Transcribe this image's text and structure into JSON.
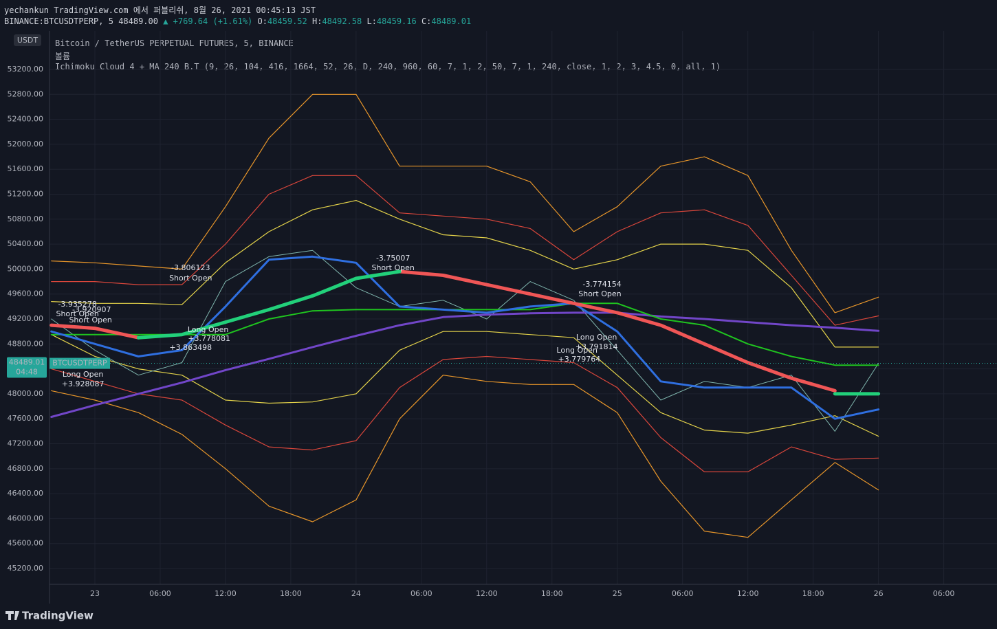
{
  "header": {
    "published": "yechankun TradingView.com 에서 퍼블리쉬, 8월 26, 2021 00:45:13 JST",
    "symbol": "BINANCE:BTCUSDTPERP, 5",
    "price": "48489.00",
    "change": "▲ +769.64 (+1.61%)",
    "ohlc": [
      {
        "label": "O:",
        "value": "48459.52"
      },
      {
        "label": "H:",
        "value": "48492.58"
      },
      {
        "label": "L:",
        "value": "48459.16"
      },
      {
        "label": "C:",
        "value": "48489.01"
      }
    ],
    "legend": [
      "Bitcoin / TetherUS PERPETUAL FUTURES, 5, BINANCE",
      "볼륨",
      "Ichimoku Cloud 4 + MA 240 B.T (9, 26, 104, 416, 1664, 52, 26, D, 240, 960, 60, 7, 1, 2, 50, 7, 1, 240, close, 1, 2, 3, 4.5, 0, all, 1)"
    ],
    "currency": "USDT",
    "logo": "TradingView"
  },
  "chart_data": {
    "type": "line",
    "x": [
      20,
      24,
      28,
      32,
      36,
      40,
      44,
      48,
      52,
      56,
      60,
      64,
      68,
      72,
      76,
      80,
      84,
      88,
      92,
      96
    ],
    "xlim": [
      19.83,
      106.26
    ],
    "xticks": [
      {
        "value": 24,
        "label": "23"
      },
      {
        "value": 30,
        "label": "06:00"
      },
      {
        "value": 36,
        "label": "12:00"
      },
      {
        "value": 42,
        "label": "18:00"
      },
      {
        "value": 48,
        "label": "24"
      },
      {
        "value": 54,
        "label": "06:00"
      },
      {
        "value": 60,
        "label": "12:00"
      },
      {
        "value": 66,
        "label": "18:00"
      },
      {
        "value": 72,
        "label": "25"
      },
      {
        "value": 78,
        "label": "06:00"
      },
      {
        "value": 84,
        "label": "12:00"
      },
      {
        "value": 90,
        "label": "18:00"
      },
      {
        "value": 96,
        "label": "26"
      },
      {
        "value": 102,
        "label": "06:00"
      }
    ],
    "ylim": [
      44947,
      53817
    ],
    "yticks": [
      {
        "value": 45200,
        "label": "45200.00"
      },
      {
        "value": 45600,
        "label": "45600.00"
      },
      {
        "value": 46000,
        "label": "46000.00"
      },
      {
        "value": 46400,
        "label": "46400.00"
      },
      {
        "value": 46800,
        "label": "46800.00"
      },
      {
        "value": 47200,
        "label": "47200.00"
      },
      {
        "value": 47600,
        "label": "47600.00"
      },
      {
        "value": 48000,
        "label": "48000.00"
      },
      {
        "value": 48400,
        "label": "48400.00"
      },
      {
        "value": 48800,
        "label": "48800.00"
      },
      {
        "value": 49200,
        "label": "49200.00"
      },
      {
        "value": 49600,
        "label": "49600.00"
      },
      {
        "value": 50000,
        "label": "50000.00"
      },
      {
        "value": 50400,
        "label": "50400.00"
      },
      {
        "value": 50800,
        "label": "50800.00"
      },
      {
        "value": 51200,
        "label": "51200.00"
      },
      {
        "value": 51600,
        "label": "51600.00"
      },
      {
        "value": 52000,
        "label": "52000.00"
      },
      {
        "value": 52400,
        "label": "52400.00"
      },
      {
        "value": 52800,
        "label": "52800.00"
      },
      {
        "value": 53200,
        "label": "53200.00"
      }
    ],
    "grid": true,
    "series": [
      {
        "color": "#e8962a",
        "values": [
          50130,
          50100,
          50050,
          50000,
          51000,
          52100,
          52800,
          52800,
          51650,
          51650,
          51650,
          51400,
          50600,
          51000,
          51650,
          51800,
          51500,
          50300,
          49300,
          49550
        ]
      },
      {
        "color": "#d9463b",
        "values": [
          49800,
          49800,
          49750,
          49750,
          50400,
          51200,
          51500,
          51500,
          50900,
          50850,
          50800,
          50650,
          50150,
          50600,
          50900,
          50950,
          50700,
          49900,
          49100,
          49250
        ]
      },
      {
        "color": "#e3d24a",
        "values": [
          49480,
          49450,
          49450,
          49430,
          50100,
          50600,
          50950,
          51100,
          50800,
          50550,
          50500,
          50300,
          50000,
          50150,
          50400,
          50400,
          50300,
          49700,
          48750,
          48750
        ]
      },
      {
        "color": "#e3d24a",
        "values": [
          48950,
          48600,
          48400,
          48300,
          47900,
          47850,
          47870,
          48000,
          48700,
          49000,
          49000,
          48950,
          48900,
          48300,
          47700,
          47420,
          47370,
          47500,
          47650,
          47320
        ]
      },
      {
        "color": "#d9463b",
        "values": [
          48400,
          48200,
          48000,
          47900,
          47500,
          47150,
          47100,
          47250,
          48100,
          48550,
          48600,
          48550,
          48500,
          48100,
          47300,
          46750,
          46750,
          47150,
          46950,
          46970
        ]
      },
      {
        "color": "#e8962a",
        "values": [
          48050,
          47900,
          47700,
          47350,
          46800,
          46200,
          45950,
          46300,
          47600,
          48300,
          48200,
          48150,
          48150,
          47700,
          46600,
          45800,
          45700,
          46300,
          46900,
          46460
        ]
      },
      {
        "color": "#7fb5ad",
        "values": [
          49200,
          48700,
          48300,
          48500,
          49800,
          50200,
          50300,
          49700,
          49400,
          49500,
          49200,
          49800,
          49500,
          48700,
          47900,
          48200,
          48100,
          48300,
          47400,
          48489
        ]
      },
      {
        "color": "#7146c8",
        "values": [
          47630,
          47820,
          48000,
          48180,
          48380,
          48560,
          48750,
          48930,
          49100,
          49230,
          49270,
          49290,
          49300,
          49300,
          49240,
          49200,
          49150,
          49100,
          49060,
          49010
        ]
      },
      {
        "color": "#1fc41f",
        "values": [
          48950,
          48950,
          48950,
          48950,
          48950,
          49200,
          49330,
          49350,
          49350,
          49350,
          49350,
          49350,
          49450,
          49450,
          49200,
          49100,
          48800,
          48600,
          48460,
          48460
        ]
      },
      {
        "color": "#2f6fe0",
        "values": [
          49000,
          48800,
          48600,
          48700,
          49400,
          50150,
          50200,
          50100,
          49400,
          49350,
          49300,
          49400,
          49450,
          49000,
          48200,
          48100,
          48100,
          48100,
          47600,
          47750
        ]
      },
      {
        "color": "#f05656",
        "values": [
          49100,
          49050,
          48900,
          null,
          null,
          null,
          null,
          null,
          49960,
          49900,
          49750,
          49600,
          49450,
          49300,
          49100,
          48800,
          48500,
          48250,
          48050,
          null
        ]
      },
      {
        "color": "#22d07a",
        "values": [
          null,
          null,
          48900,
          48950,
          49150,
          49350,
          49570,
          49850,
          49960,
          null,
          null,
          null,
          null,
          null,
          null,
          null,
          null,
          null,
          48000,
          48000
        ]
      }
    ],
    "last_price": 48489.01,
    "countdown": "04:48",
    "symbol_tag": "BTCUSDTPERP",
    "annotations": [
      {
        "text": "-3.935278",
        "x": 22.4,
        "y": 49431
      },
      {
        "text": "Short Open",
        "x": 22.4,
        "y": 49277
      },
      {
        "text": "-3.920907",
        "x": 23.7,
        "y": 49343
      },
      {
        "text": "Short Open",
        "x": 23.6,
        "y": 49178
      },
      {
        "text": "-3.806123",
        "x": 32.8,
        "y": 50015
      },
      {
        "text": "Short Open",
        "x": 32.8,
        "y": 49850
      },
      {
        "text": "Long Open",
        "x": 34.4,
        "y": 49024
      },
      {
        "text": "+3.778081",
        "x": 34.5,
        "y": 48880
      },
      {
        "text": "+3.863498",
        "x": 32.8,
        "y": 48737
      },
      {
        "text": "-3.75007",
        "x": 51.4,
        "y": 50170
      },
      {
        "text": "Short Open",
        "x": 51.4,
        "y": 50015
      },
      {
        "text": "-3.774154",
        "x": 70.6,
        "y": 49751
      },
      {
        "text": "Short Open",
        "x": 70.4,
        "y": 49597
      },
      {
        "text": "Long Open",
        "x": 70.1,
        "y": 48902
      },
      {
        "text": "+3.791814",
        "x": 70.1,
        "y": 48748
      },
      {
        "text": "Long Open",
        "x": 68.3,
        "y": 48693
      },
      {
        "text": "+3.779764",
        "x": 68.5,
        "y": 48550
      },
      {
        "text": "Long Open",
        "x": 22.9,
        "y": 48307
      },
      {
        "text": "+3.928087",
        "x": 22.9,
        "y": 48153
      }
    ]
  }
}
